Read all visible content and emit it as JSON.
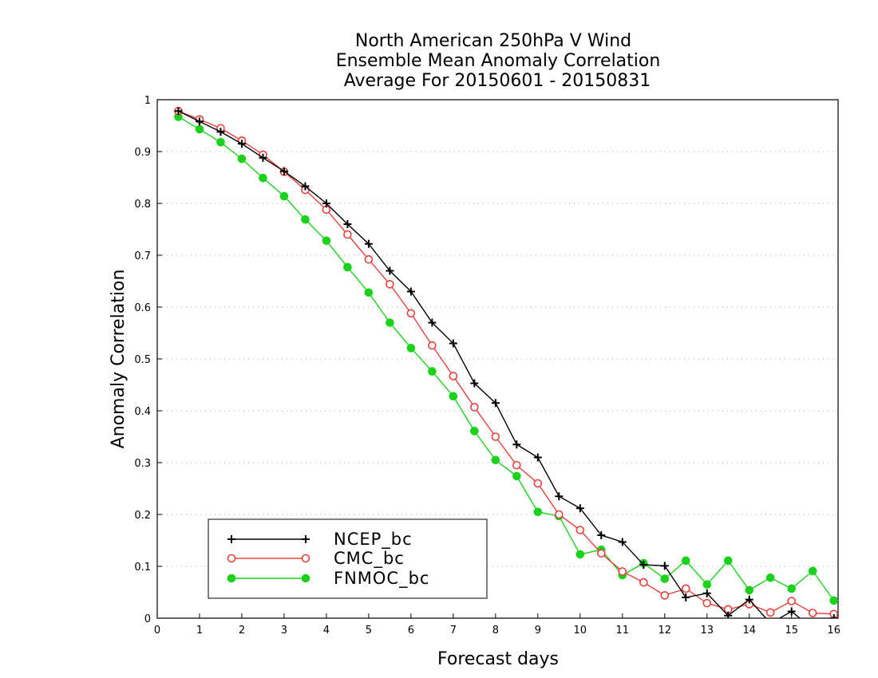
{
  "chart_data": {
    "type": "line",
    "title": [
      "North American 250hPa V Wind",
      "Ensemble Mean Anomaly Correlation",
      "Average For 20150601 - 20150831"
    ],
    "xlabel": "Forecast days",
    "ylabel": "Anomaly Correlation",
    "xlim": [
      0,
      16.1
    ],
    "ylim": [
      0,
      1
    ],
    "xticks": [
      "0",
      "1",
      "2",
      "3",
      "4",
      "5",
      "6",
      "7",
      "8",
      "9",
      "10",
      "11",
      "12",
      "13",
      "14",
      "15",
      "16"
    ],
    "yticks": [
      "0",
      "0.1",
      "0.2",
      "0.3",
      "0.4",
      "0.5",
      "0.6",
      "0.7",
      "0.8",
      "0.9",
      "1"
    ],
    "grid": true,
    "legend_position": "bottom-left",
    "x": [
      0.5,
      1,
      1.5,
      2,
      2.5,
      3,
      3.5,
      4,
      4.5,
      5,
      5.5,
      6,
      6.5,
      7,
      7.5,
      8,
      8.5,
      9,
      9.5,
      10,
      10.5,
      11,
      11.5,
      12,
      12.5,
      13,
      13.5,
      14,
      14.5,
      15,
      15.5,
      16
    ],
    "series": [
      {
        "name": "NCEP_bc",
        "color": "#000000",
        "marker": "plus",
        "values": [
          0.978,
          0.958,
          0.938,
          0.915,
          0.888,
          0.862,
          0.833,
          0.8,
          0.76,
          0.722,
          0.67,
          0.63,
          0.57,
          0.53,
          0.453,
          0.415,
          0.335,
          0.31,
          0.235,
          0.212,
          0.16,
          0.147,
          0.103,
          0.101,
          0.04,
          0.048,
          0.005,
          0.036,
          -0.01,
          0.013,
          -0.02,
          0.0
        ]
      },
      {
        "name": "CMC_bc",
        "color": "#e8413c",
        "marker": "circle-open",
        "values": [
          0.978,
          0.962,
          0.945,
          0.921,
          0.894,
          0.861,
          0.826,
          0.788,
          0.74,
          0.692,
          0.644,
          0.588,
          0.526,
          0.467,
          0.407,
          0.35,
          0.295,
          0.26,
          0.2,
          0.17,
          0.125,
          0.09,
          0.069,
          0.044,
          0.057,
          0.029,
          0.017,
          0.027,
          0.011,
          0.033,
          0.01,
          0.008
        ]
      },
      {
        "name": "FNMOC_bc",
        "color": "#19d219",
        "marker": "circle-filled",
        "values": [
          0.967,
          0.943,
          0.918,
          0.886,
          0.849,
          0.814,
          0.769,
          0.728,
          0.677,
          0.628,
          0.57,
          0.521,
          0.476,
          0.428,
          0.361,
          0.305,
          0.274,
          0.205,
          0.197,
          0.123,
          0.132,
          0.083,
          0.106,
          0.076,
          0.111,
          0.065,
          0.111,
          0.054,
          0.078,
          0.057,
          0.091,
          0.034
        ]
      }
    ]
  }
}
